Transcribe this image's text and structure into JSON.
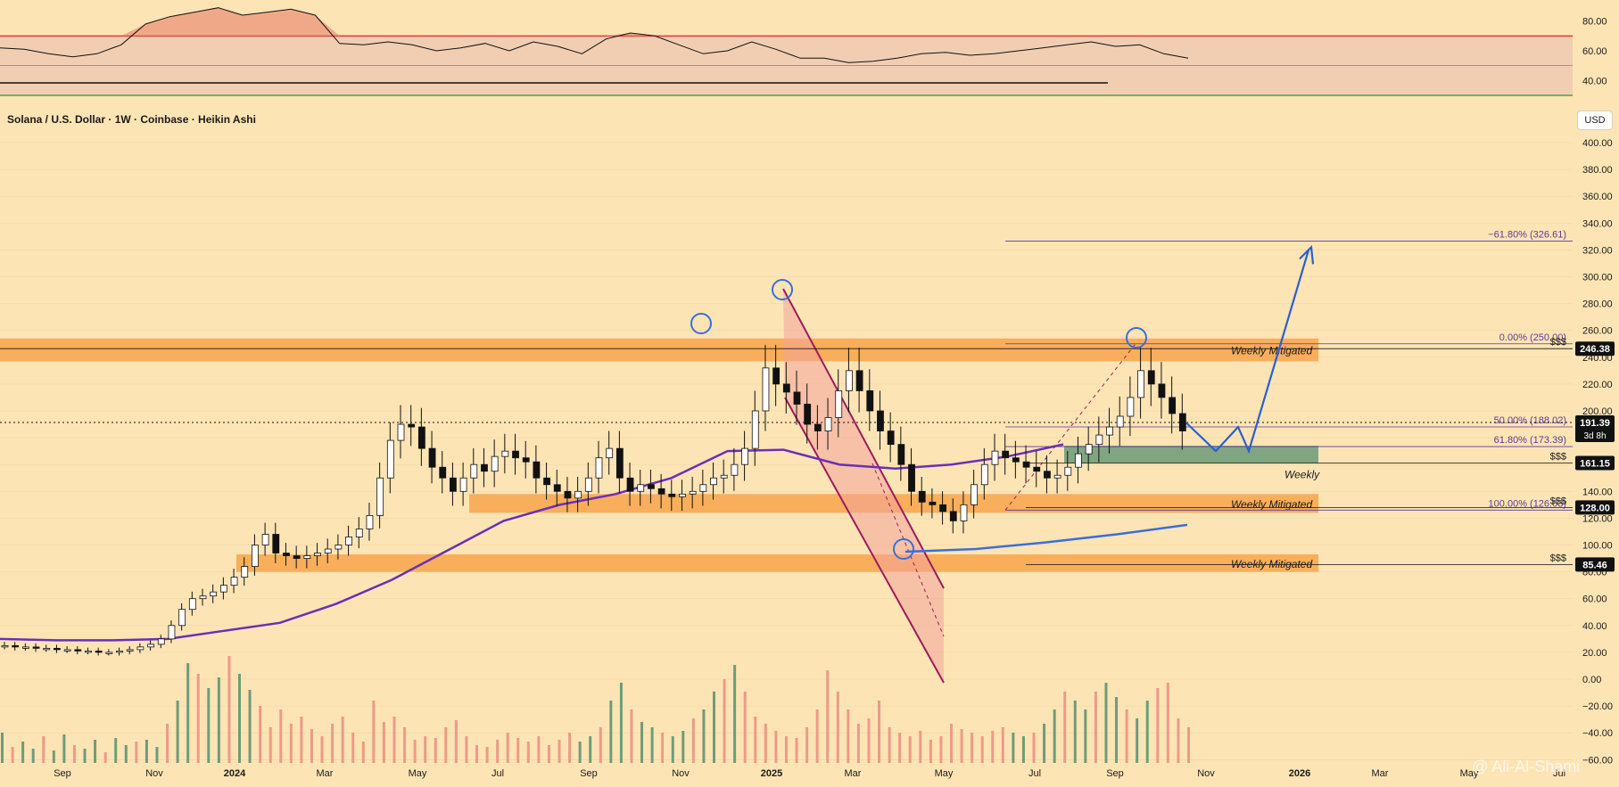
{
  "chart_title": "Solana / U.S. Dollar · 1W · Coinbase · Heikin Ashi",
  "currency_badge": "USD",
  "watermark": "@ Ali-Al-Shami",
  "colors": {
    "background": "#fde4b5",
    "bull_candle": "#ffffff",
    "bear_candle": "#111111",
    "zone_orange": "#f7a54a",
    "zone_green": "#6a9a78",
    "channel_fill": "#f3a49a",
    "channel_line": "#9b1c5a",
    "ma_purple": "#6a2fb8",
    "ma_blue": "#3a6fd8",
    "projection_blue": "#2a5fd0",
    "fib_purple": "#5b3a9a",
    "rsi_band": "#e9bfb0",
    "rsi_overbought_line": "#e03a3a",
    "rsi_oversold_line": "#3aa84a",
    "volume_up": "#6e9c78",
    "volume_down": "#ee9a88"
  },
  "chart_data": [
    {
      "type": "candlestick",
      "title": "Solana / U.S. Dollar · 1W · Coinbase · Heikin Ashi",
      "y_axis": {
        "unit": "USD",
        "ticks": [
          -60,
          -40,
          -20,
          0,
          20,
          40,
          60,
          80,
          100,
          120,
          140,
          160,
          180,
          200,
          220,
          240,
          260,
          280,
          300,
          320,
          340,
          360,
          380,
          400
        ],
        "tick_labels": [
          "−60.00",
          "−40.00",
          "−20.00",
          "0.00",
          "20.00",
          "40.00",
          "60.00",
          "80.00",
          "100.00",
          "120.00",
          "140.00",
          "160.00",
          "180.00",
          "200.00",
          "220.00",
          "240.00",
          "260.00",
          "280.00",
          "300.00",
          "320.00",
          "340.00",
          "360.00",
          "380.00",
          "400.00"
        ]
      },
      "x_axis": {
        "tick_labels": [
          "Sep",
          "Nov",
          "2024",
          "Mar",
          "May",
          "Jul",
          "Sep",
          "Nov",
          "2025",
          "Mar",
          "May",
          "Jul",
          "Sep",
          "Nov",
          "2026",
          "Mar",
          "May",
          "Jul"
        ],
        "bold_labels": [
          "2024",
          "2025",
          "2026"
        ]
      },
      "candle_closes": [
        25,
        24,
        24,
        23,
        23,
        22,
        22,
        21,
        21,
        20,
        20,
        21,
        22,
        24,
        26,
        30,
        40,
        52,
        60,
        62,
        65,
        70,
        76,
        84,
        100,
        108,
        94,
        92,
        90,
        92,
        94,
        97,
        100,
        106,
        112,
        122,
        150,
        178,
        190,
        188,
        172,
        158,
        150,
        140,
        150,
        160,
        155,
        166,
        170,
        165,
        162,
        150,
        145,
        140,
        135,
        140,
        150,
        165,
        172,
        150,
        140,
        145,
        142,
        138,
        136,
        138,
        140,
        145,
        150,
        152,
        160,
        172,
        200,
        232,
        220,
        214,
        205,
        190,
        185,
        195,
        215,
        230,
        215,
        200,
        185,
        175,
        160,
        140,
        132,
        130,
        125,
        118,
        130,
        145,
        160,
        170,
        165,
        162,
        158,
        155,
        150,
        152,
        158,
        168,
        175,
        182,
        188,
        196,
        210,
        230,
        220,
        210,
        198,
        185
      ],
      "price_labels": [
        {
          "value": 246.38,
          "label": "246.38"
        },
        {
          "value": 191.39,
          "label": "191.39",
          "sub": "3d 8h"
        },
        {
          "value": 161.15,
          "label": "161.15"
        },
        {
          "value": 128.0,
          "label": "128.00"
        },
        {
          "value": 85.46,
          "label": "85.46"
        }
      ],
      "zones": [
        {
          "label": "Weekly Mitigated",
          "low": 237,
          "high": 254
        },
        {
          "label": "Weekly Mitigated",
          "low": 124,
          "high": 138
        },
        {
          "label": "Weekly Mitigated",
          "low": 80,
          "high": 93
        },
        {
          "label": "Weekly",
          "low": 161,
          "high": 174
        }
      ],
      "liquidity_lines": [
        {
          "label": "$$$",
          "value": 246.38
        },
        {
          "label": "$$$",
          "value": 161.15
        },
        {
          "label": "$$$",
          "value": 128.0
        },
        {
          "label": "$$$",
          "value": 85.46
        }
      ],
      "fibonacci": [
        {
          "label": "−61.80% (326.61)",
          "value": 326.61
        },
        {
          "label": "0.00% (250.00)",
          "value": 250.0
        },
        {
          "label": "50.00% (188.02)",
          "value": 188.02
        },
        {
          "label": "61.80% (173.39)",
          "value": 173.39
        },
        {
          "label": "100.00% (126.03)",
          "value": 126.03
        }
      ],
      "current_price": 191.39,
      "projection_path": [
        191,
        170,
        188,
        170,
        320
      ],
      "ma_purple": [
        30,
        29,
        29,
        30,
        36,
        42,
        56,
        74,
        96,
        118,
        130,
        138,
        150,
        170,
        171,
        160,
        157,
        160,
        166,
        175
      ],
      "ma_blue": [
        95,
        97,
        102,
        108,
        115
      ]
    },
    {
      "type": "line",
      "series": [
        {
          "values": [
            62,
            61,
            58,
            56,
            58,
            64,
            78,
            83,
            86,
            89,
            84,
            86,
            88,
            84,
            65,
            64,
            66,
            64,
            60,
            62,
            65,
            60,
            66,
            63,
            58,
            68,
            72,
            70,
            64,
            58,
            60,
            66,
            61,
            55,
            55,
            52,
            53,
            55,
            58,
            59,
            57,
            58,
            60,
            62,
            64,
            66,
            63,
            64,
            58,
            55
          ]
        }
      ],
      "ylim": [
        30,
        90
      ],
      "y_ticks": [
        40,
        60,
        80
      ],
      "tick_labels": [
        "40.00",
        "60.00",
        "80.00"
      ],
      "reference_lines": [
        70,
        30,
        50
      ]
    },
    {
      "type": "bar",
      "series": [
        {
          "values": [
            34,
            18,
            24,
            16,
            30,
            14,
            32,
            20,
            16,
            26,
            12,
            28,
            20,
            24,
            26,
            18,
            44,
            70,
            112,
            100,
            84,
            96,
            120,
            100,
            82,
            64,
            40,
            60,
            44,
            52,
            38,
            30,
            44,
            52,
            34,
            24,
            70,
            46,
            52,
            40,
            26,
            30,
            28,
            40,
            48,
            30,
            20,
            18,
            26,
            34,
            28,
            24,
            30,
            20,
            26,
            34,
            24,
            30,
            40,
            70,
            90,
            60,
            46,
            40,
            34,
            30,
            36,
            50,
            60,
            80,
            94,
            110,
            80,
            52,
            44,
            36,
            30,
            28,
            40,
            60,
            104,
            80,
            60,
            44,
            50,
            70,
            40,
            34,
            30,
            36,
            26,
            30,
            44,
            38,
            34,
            30,
            36,
            40,
            34,
            30,
            34,
            44,
            60,
            80,
            70,
            60,
            80,
            90,
            74,
            60,
            50,
            70,
            84,
            90,
            50,
            40
          ]
        }
      ]
    }
  ]
}
